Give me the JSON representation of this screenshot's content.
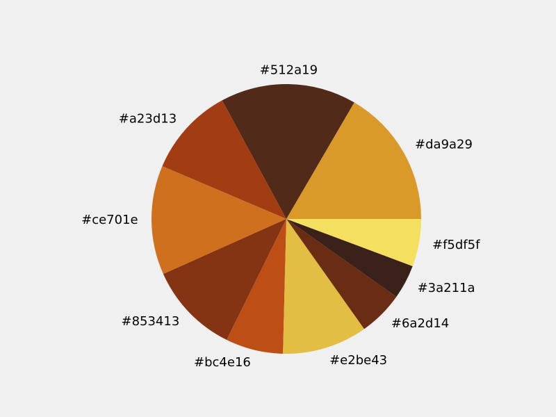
{
  "chart_data": {
    "type": "pie",
    "title": "",
    "start_angle_deg": 0,
    "direction": "counterclockwise",
    "legend": "none",
    "slices": [
      {
        "label": "#da9a29",
        "color": "#da9a29",
        "value": 16.6
      },
      {
        "label": "#512a19",
        "color": "#512a19",
        "value": 16.3
      },
      {
        "label": "#a23d13",
        "color": "#a23d13",
        "value": 10.7
      },
      {
        "label": "#ce701e",
        "color": "#ce701e",
        "value": 13.1
      },
      {
        "label": "#853413",
        "color": "#853413",
        "value": 11.0
      },
      {
        "label": "#bc4e16",
        "color": "#bc4e16",
        "value": 6.9
      },
      {
        "label": "#e2be43",
        "color": "#e2be43",
        "value": 10.2
      },
      {
        "label": "#6a2d14",
        "color": "#6a2d14",
        "value": 5.4
      },
      {
        "label": "#3a211a",
        "color": "#3a211a",
        "value": 4.1
      },
      {
        "label": "#f5df5f",
        "color": "#f5df5f",
        "value": 5.7
      }
    ]
  }
}
